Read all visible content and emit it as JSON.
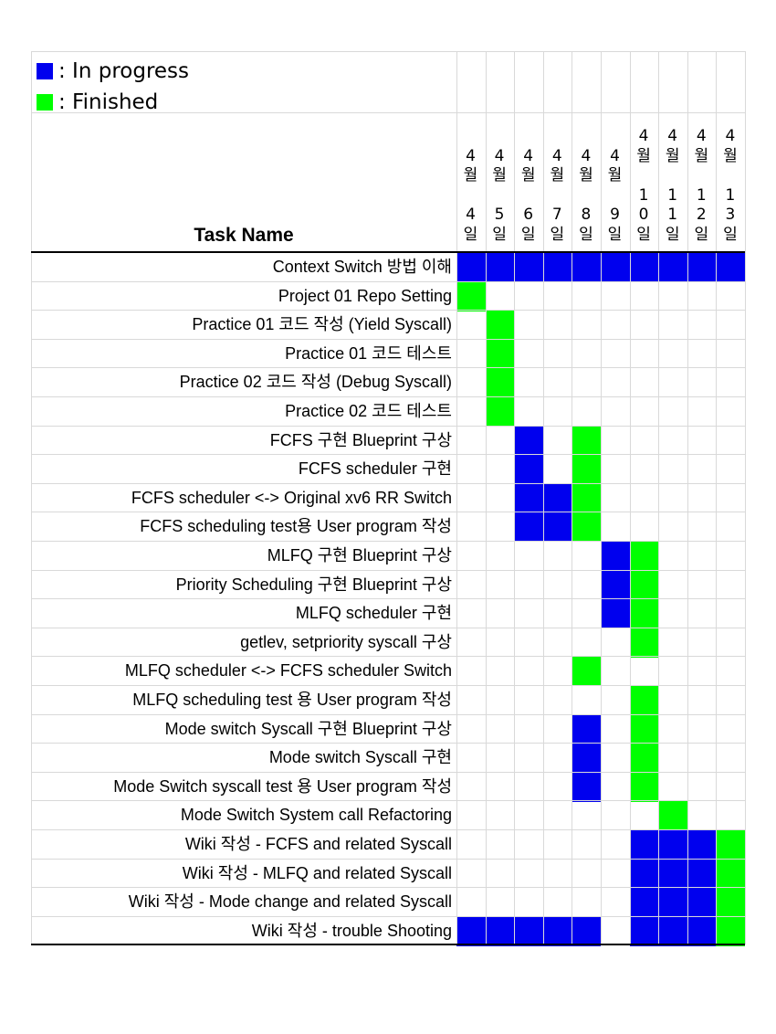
{
  "legend": [
    {
      "label": ": In progress",
      "color": "#0000ee"
    },
    {
      "label": ": Finished",
      "color": "#00ff00"
    }
  ],
  "header": {
    "task_name": "Task Name"
  },
  "dates": [
    {
      "month": "4\n월",
      "day": "4\n일"
    },
    {
      "month": "4\n월",
      "day": "5\n일"
    },
    {
      "month": "4\n월",
      "day": "6\n일"
    },
    {
      "month": "4\n월",
      "day": "7\n일"
    },
    {
      "month": "4\n월",
      "day": "8\n일"
    },
    {
      "month": "4\n월",
      "day": "9\n일"
    },
    {
      "month": "4\n월",
      "day": "1\n0\n일"
    },
    {
      "month": "4\n월",
      "day": "1\n1\n일"
    },
    {
      "month": "4\n월",
      "day": "1\n2\n일"
    },
    {
      "month": "4\n월",
      "day": "1\n3\n일"
    }
  ],
  "tasks": [
    {
      "name": "Context Switch 방법 이해",
      "cells": "PPPPPPPPPP"
    },
    {
      "name": "Project 01 Repo Setting",
      "cells": "F........."
    },
    {
      "name": "Practice 01 코드 작성 (Yield Syscall)",
      "cells": ".F........"
    },
    {
      "name": "Practice 01 코드 테스트",
      "cells": ".F........"
    },
    {
      "name": "Practice 02 코드 작성 (Debug Syscall)",
      "cells": ".F........"
    },
    {
      "name": "Practice 02 코드 테스트",
      "cells": ".F........"
    },
    {
      "name": "FCFS 구현 Blueprint 구상",
      "cells": "..P.F....."
    },
    {
      "name": "FCFS scheduler 구현",
      "cells": "..P.F....."
    },
    {
      "name": "FCFS scheduler <-> Original xv6 RR Switch",
      "cells": "..PPF....."
    },
    {
      "name": "FCFS scheduling test용 User program 작성",
      "cells": "..PPF....."
    },
    {
      "name": "MLFQ 구현 Blueprint 구상",
      "cells": ".....PF..."
    },
    {
      "name": "Priority Scheduling 구현 Blueprint 구상",
      "cells": ".....PF..."
    },
    {
      "name": "MLFQ scheduler 구현",
      "cells": ".....PF..."
    },
    {
      "name": "getlev, setpriority syscall 구상",
      "cells": "......F..."
    },
    {
      "name": "MLFQ scheduler <-> FCFS scheduler Switch",
      "cells": "....F....."
    },
    {
      "name": "MLFQ scheduling test 용 User program 작성",
      "cells": "......F..."
    },
    {
      "name": "Mode switch Syscall 구현 Blueprint 구상",
      "cells": "....P.F..."
    },
    {
      "name": "Mode switch Syscall 구현",
      "cells": "....P.F..."
    },
    {
      "name": "Mode Switch syscall test 용 User program 작성",
      "cells": "....P.F..."
    },
    {
      "name": "Mode Switch System call Refactoring",
      "cells": ".......F.."
    },
    {
      "name": "Wiki 작성 - FCFS and related Syscall",
      "cells": "......PPPF"
    },
    {
      "name": "Wiki 작성 - MLFQ and related Syscall",
      "cells": "......PPPF"
    },
    {
      "name": "Wiki 작성 - Mode change and related Syscall",
      "cells": "......PPPF"
    },
    {
      "name": "Wiki 작성 - trouble Shooting",
      "cells": "PPPPP.PPPF"
    }
  ],
  "colors": {
    "in_progress": "#0000ee",
    "finished": "#00ff00",
    "grid": "#d9d9d9"
  }
}
